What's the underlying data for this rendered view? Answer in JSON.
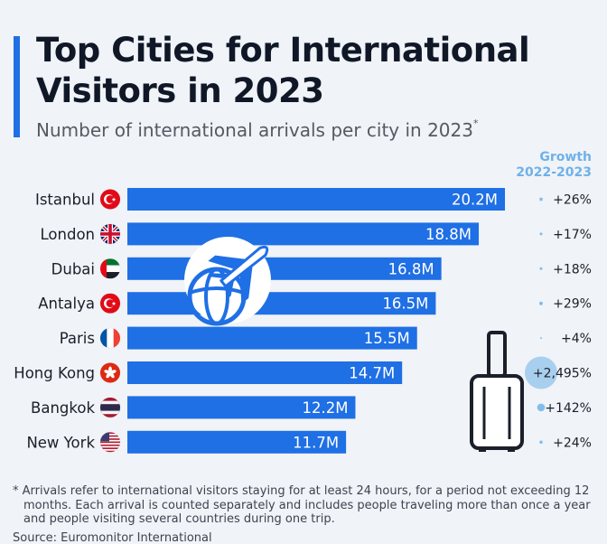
{
  "title": "Top Cities for International Visitors in 2023",
  "subtitle": "Number of international arrivals per city in 2023",
  "subtitle_mark": "*",
  "growth_header": {
    "line1": "Growth",
    "line2": "2022-2023"
  },
  "colors": {
    "bar": "#1f6fe5",
    "accent": "#6fb1ea",
    "background": "#f0f3f7"
  },
  "chart_data": {
    "type": "bar",
    "orientation": "horizontal",
    "title": "Top Cities for International Visitors in 2023",
    "xlabel": "",
    "ylabel": "",
    "unit": "M",
    "xlim": [
      0,
      20.2
    ],
    "categories": [
      "Istanbul",
      "London",
      "Dubai",
      "Antalya",
      "Paris",
      "Hong Kong",
      "Bangkok",
      "New York"
    ],
    "values": [
      20.2,
      18.8,
      16.8,
      16.5,
      15.5,
      14.7,
      12.2,
      11.7
    ],
    "value_labels": [
      "20.2M",
      "18.8M",
      "16.8M",
      "16.5M",
      "15.5M",
      "14.7M",
      "12.2M",
      "11.7M"
    ],
    "flags": [
      "turkey-flag",
      "uk-flag",
      "uae-flag",
      "turkey-flag",
      "france-flag",
      "hong-kong-flag",
      "thailand-flag",
      "usa-flag"
    ],
    "growth_labels": [
      "+26%",
      "+17%",
      "+18%",
      "+29%",
      "+4%",
      "+2,495%",
      "+142%",
      "+24%"
    ],
    "growth_values": [
      26,
      17,
      18,
      29,
      4,
      2495,
      142,
      24
    ]
  },
  "footnote": "* Arrivals refer to international visitors staying for at least 24 hours, for a period not exceeding 12 months. Each arrival is counted separately and includes people traveling more than once a year and people visiting several countries during one trip.",
  "source": "Source: Euromonitor International"
}
